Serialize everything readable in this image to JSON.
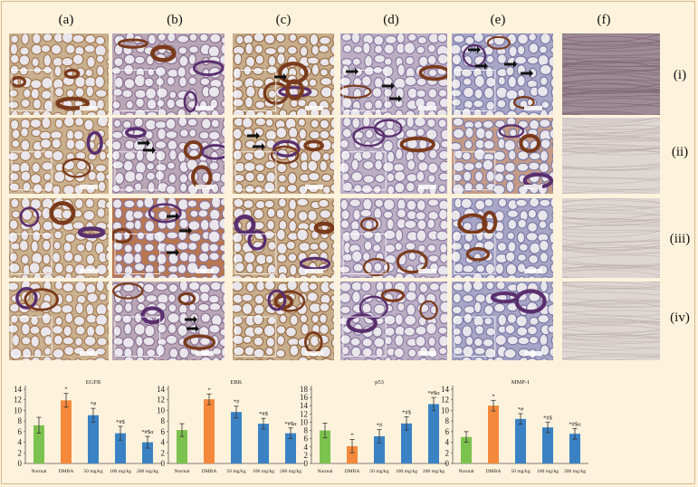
{
  "figure": {
    "column_labels": [
      "(a)",
      "(b)",
      "(c)",
      "(d)",
      "(e)",
      "(f)"
    ],
    "row_labels": [
      "(i)",
      "(ii)",
      "(iii)",
      "(iv)"
    ]
  },
  "chart_data": [
    {
      "type": "bar",
      "title": "EGFR",
      "categories": [
        "Normal",
        "DMBA",
        "50 mg/kg",
        "100 mg/kg",
        "200 mg/kg"
      ],
      "values": [
        7.2,
        11.9,
        9.1,
        5.7,
        4.0
      ],
      "errors": [
        1.5,
        1.3,
        1.3,
        1.3,
        1.1
      ],
      "annotations": [
        "",
        "*",
        "*#",
        "*#$",
        "*#$α"
      ],
      "colors": [
        "#7cc24f",
        "#f5893b",
        "#3a82c4",
        "#3a82c4",
        "#3a82c4"
      ],
      "ylim": [
        0,
        14
      ],
      "yticks": [
        0,
        2,
        4,
        6,
        8,
        10,
        12,
        14
      ]
    },
    {
      "type": "bar",
      "title": "ERK",
      "categories": [
        "Normal",
        "DMBA",
        "50 mg/kg",
        "100 mg/kg",
        "200 mg/kg"
      ],
      "values": [
        6.3,
        12.1,
        9.7,
        7.5,
        5.7
      ],
      "errors": [
        1.2,
        1.0,
        1.1,
        1.0,
        1.0
      ],
      "annotations": [
        "",
        "*",
        "*#",
        "*#$",
        "*#$α"
      ],
      "colors": [
        "#7cc24f",
        "#f5893b",
        "#3a82c4",
        "#3a82c4",
        "#3a82c4"
      ],
      "ylim": [
        0,
        14
      ],
      "yticks": [
        0,
        2,
        4,
        6,
        8,
        10,
        12,
        14
      ]
    },
    {
      "type": "bar",
      "title": "p53",
      "categories": [
        "Normal",
        "DMBA",
        "50 mg/kg",
        "100 mg/kg",
        "200 mg/kg"
      ],
      "values": [
        8.0,
        4.2,
        6.6,
        9.7,
        14.4
      ],
      "errors": [
        1.8,
        1.6,
        1.6,
        1.6,
        1.6
      ],
      "annotations": [
        "",
        "*",
        "*#",
        "*#$",
        "*#$α"
      ],
      "colors": [
        "#7cc24f",
        "#f5893b",
        "#3a82c4",
        "#3a82c4",
        "#3a82c4"
      ],
      "ylim": [
        0,
        18
      ],
      "yticks": [
        0,
        2,
        4,
        6,
        8,
        10,
        12,
        14,
        16,
        18
      ]
    },
    {
      "type": "bar",
      "title": "MMP-1",
      "categories": [
        "Normal",
        "DMBA",
        "50 mg/kg",
        "100 mg/kg",
        "200 mg/kg"
      ],
      "values": [
        5.0,
        10.9,
        8.4,
        6.8,
        5.6
      ],
      "errors": [
        1.0,
        1.0,
        1.0,
        1.0,
        1.0
      ],
      "annotations": [
        "",
        "*",
        "*#",
        "*#$",
        "*#$α"
      ],
      "colors": [
        "#7cc24f",
        "#f5893b",
        "#3a82c4",
        "#3a82c4",
        "#3a82c4"
      ],
      "ylim": [
        0,
        14
      ],
      "yticks": [
        0,
        2,
        4,
        6,
        8,
        10,
        12,
        14
      ]
    }
  ]
}
